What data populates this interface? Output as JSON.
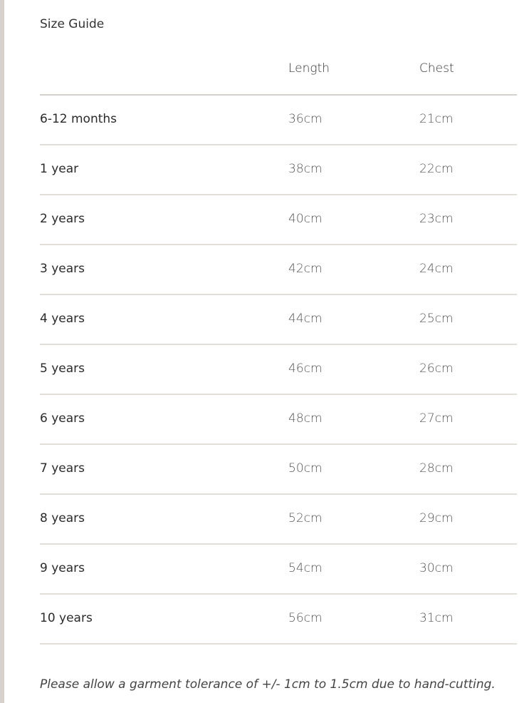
{
  "title": "Size Guide",
  "columns": [
    "",
    "Length",
    "Chest"
  ],
  "rows": [
    {
      "size": "6-12 months",
      "length": "36cm",
      "chest": "21cm"
    },
    {
      "size": "1 year",
      "length": "38cm",
      "chest": "22cm"
    },
    {
      "size": "2 years",
      "length": "40cm",
      "chest": "23cm"
    },
    {
      "size": "3 years",
      "length": "42cm",
      "chest": "24cm"
    },
    {
      "size": "4 years",
      "length": "44cm",
      "chest": "25cm"
    },
    {
      "size": "5 years",
      "length": "46cm",
      "chest": "26cm"
    },
    {
      "size": "6 years",
      "length": "48cm",
      "chest": "27cm"
    },
    {
      "size": "7 years",
      "length": "50cm",
      "chest": "28cm"
    },
    {
      "size": "8 years",
      "length": "52cm",
      "chest": "29cm"
    },
    {
      "size": "9 years",
      "length": "54cm",
      "chest": "30cm"
    },
    {
      "size": "10 years",
      "length": "56cm",
      "chest": "31cm"
    }
  ],
  "note": "Please allow a garment tolerance of +/- 1cm to 1.5cm due to hand-cutting."
}
